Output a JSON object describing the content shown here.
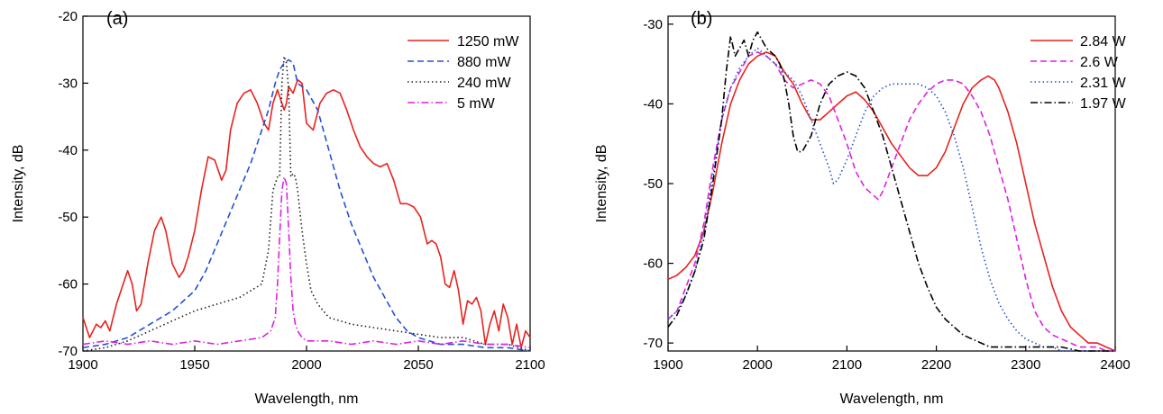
{
  "chart_data": [
    {
      "type": "line",
      "panel_label": "(a)",
      "xlabel": "Wavelength, nm",
      "ylabel": "Intensity, dB",
      "xlim": [
        1900,
        2100
      ],
      "ylim": [
        -70,
        -20
      ],
      "xticks": [
        1900,
        1950,
        2000,
        2050,
        2100
      ],
      "yticks": [
        -70,
        -60,
        -50,
        -40,
        -30,
        -20
      ],
      "legend_position": "top-right",
      "series": [
        {
          "name": "1250 mW",
          "color": "#e8221e",
          "dash": "solid",
          "x": [
            1900,
            1903,
            1906,
            1908,
            1910,
            1912,
            1915,
            1918,
            1920,
            1922,
            1924,
            1926,
            1929,
            1932,
            1935,
            1937,
            1940,
            1943,
            1945,
            1947,
            1950,
            1953,
            1956,
            1959,
            1962,
            1964,
            1966,
            1969,
            1972,
            1975,
            1978,
            1981,
            1983,
            1985,
            1987,
            1988,
            1990,
            1991,
            1992,
            1994,
            1996,
            1998,
            2000,
            2003,
            2006,
            2009,
            2012,
            2015,
            2018,
            2021,
            2024,
            2027,
            2030,
            2033,
            2036,
            2039,
            2042,
            2045,
            2048,
            2051,
            2054,
            2056,
            2058,
            2060,
            2062,
            2064,
            2066,
            2068,
            2070,
            2072,
            2074,
            2076,
            2078,
            2080,
            2082,
            2084,
            2086,
            2088,
            2090,
            2092,
            2094,
            2096,
            2098,
            2100
          ],
          "y": [
            -65,
            -68,
            -66,
            -66.5,
            -65.5,
            -67,
            -63,
            -60,
            -58,
            -60,
            -64,
            -63,
            -57,
            -52,
            -50,
            -52,
            -57,
            -59,
            -58,
            -56,
            -52,
            -46,
            -41,
            -41.5,
            -44.5,
            -43,
            -37,
            -33,
            -31.5,
            -31,
            -33,
            -36,
            -37,
            -33,
            -31,
            -32,
            -34,
            -33,
            -30.5,
            -31.5,
            -29.5,
            -30,
            -36,
            -37,
            -33,
            -31.5,
            -31,
            -31.5,
            -34,
            -37,
            -39.5,
            -41,
            -42,
            -42.5,
            -42,
            -44.5,
            -48,
            -48,
            -48.5,
            -50,
            -54,
            -53.5,
            -54,
            -56,
            -60,
            -60.5,
            -58,
            -61,
            -66,
            -62.5,
            -63,
            -62,
            -64,
            -69,
            -66,
            -64,
            -67,
            -63,
            -65,
            -69,
            -66,
            -69.5,
            -67,
            -68
          ]
        },
        {
          "name": "880 mW",
          "color": "#2450d8",
          "dash": "dashed",
          "x": [
            1900,
            1910,
            1920,
            1930,
            1940,
            1950,
            1955,
            1960,
            1965,
            1970,
            1975,
            1980,
            1983,
            1986,
            1988,
            1990,
            1992,
            1994,
            1996,
            1998,
            2000,
            2005,
            2010,
            2015,
            2020,
            2025,
            2030,
            2035,
            2040,
            2045,
            2050,
            2060,
            2070,
            2080,
            2090,
            2100
          ],
          "y": [
            -69.5,
            -69,
            -68,
            -66,
            -64,
            -61,
            -58,
            -54,
            -50,
            -46,
            -42,
            -37,
            -34,
            -30,
            -28,
            -27,
            -26.5,
            -27,
            -30,
            -30.5,
            -31,
            -34,
            -40,
            -46,
            -51,
            -55,
            -59,
            -62,
            -65,
            -67,
            -68,
            -69,
            -69,
            -69.5,
            -69.5,
            -70
          ]
        },
        {
          "name": "240 mW",
          "color": "#222222",
          "dash": "dotted",
          "x": [
            1900,
            1910,
            1920,
            1930,
            1940,
            1950,
            1960,
            1970,
            1980,
            1983,
            1985,
            1987,
            1988,
            1989,
            1990,
            1991,
            1992,
            1993,
            1994,
            1995,
            1996,
            1998,
            2000,
            2002,
            2005,
            2010,
            2015,
            2020,
            2030,
            2040,
            2050,
            2060,
            2070,
            2080,
            2090,
            2100
          ],
          "y": [
            -70,
            -69.5,
            -68.5,
            -67,
            -65.5,
            -64,
            -63,
            -62,
            -60,
            -55,
            -46,
            -44,
            -44,
            -30,
            -26,
            -27,
            -31,
            -44,
            -43.5,
            -44,
            -46,
            -52,
            -57,
            -61,
            -63,
            -65,
            -65.5,
            -66,
            -66.5,
            -67,
            -67.5,
            -68,
            -68,
            -69,
            -69,
            -70
          ]
        },
        {
          "name": "5 mW",
          "color": "#e01fe0",
          "dash": "dashdot",
          "x": [
            1900,
            1910,
            1920,
            1930,
            1940,
            1950,
            1960,
            1970,
            1980,
            1984,
            1986,
            1987,
            1988,
            1989,
            1990,
            1991,
            1992,
            1993,
            1994,
            1995,
            1996,
            1998,
            2000,
            2010,
            2020,
            2030,
            2040,
            2050,
            2060,
            2070,
            2080,
            2090,
            2100
          ],
          "y": [
            -69,
            -68.5,
            -69,
            -68.5,
            -69,
            -68.5,
            -69,
            -68.5,
            -68,
            -67,
            -65,
            -60,
            -53,
            -46,
            -44,
            -45,
            -52,
            -59,
            -64,
            -66,
            -67,
            -68,
            -68.5,
            -68.5,
            -69,
            -68.5,
            -69,
            -68.5,
            -69,
            -68.5,
            -69,
            -69,
            -69.5
          ]
        }
      ]
    },
    {
      "type": "line",
      "panel_label": "(b)",
      "xlabel": "Wavelength, nm",
      "ylabel": "Intensity, dB",
      "xlim": [
        1900,
        2400
      ],
      "ylim": [
        -71,
        -29
      ],
      "xticks": [
        1900,
        2000,
        2100,
        2200,
        2300,
        2400
      ],
      "yticks": [
        -70,
        -60,
        -50,
        -40,
        -30
      ],
      "legend_position": "top-right",
      "series": [
        {
          "name": "2.84 W",
          "color": "#e8221e",
          "dash": "solid",
          "x": [
            1900,
            1910,
            1920,
            1930,
            1940,
            1950,
            1960,
            1970,
            1980,
            1990,
            2000,
            2010,
            2020,
            2030,
            2040,
            2050,
            2060,
            2070,
            2080,
            2090,
            2100,
            2110,
            2120,
            2130,
            2140,
            2150,
            2160,
            2170,
            2180,
            2190,
            2200,
            2210,
            2220,
            2230,
            2240,
            2250,
            2258,
            2265,
            2270,
            2280,
            2290,
            2300,
            2310,
            2320,
            2330,
            2340,
            2350,
            2360,
            2370,
            2380,
            2390,
            2400
          ],
          "y": [
            -62,
            -61.5,
            -60.5,
            -59,
            -56,
            -51,
            -45,
            -40,
            -37,
            -35,
            -34,
            -33.5,
            -34,
            -36,
            -37.5,
            -40,
            -42,
            -42,
            -41,
            -40,
            -39,
            -38.5,
            -39.5,
            -41,
            -43,
            -45,
            -46.5,
            -48,
            -49,
            -49,
            -48,
            -46,
            -43,
            -40,
            -38,
            -37,
            -36.5,
            -37,
            -38,
            -41,
            -45,
            -50,
            -55,
            -59,
            -63,
            -66,
            -68,
            -69,
            -70,
            -70,
            -70.5,
            -71
          ]
        },
        {
          "name": "2.6 W",
          "color": "#e01fe0",
          "dash": "dashed",
          "x": [
            1900,
            1910,
            1920,
            1930,
            1940,
            1950,
            1960,
            1970,
            1980,
            1990,
            2000,
            2010,
            2020,
            2030,
            2040,
            2050,
            2060,
            2070,
            2080,
            2090,
            2100,
            2110,
            2120,
            2130,
            2135,
            2140,
            2150,
            2160,
            2170,
            2180,
            2190,
            2200,
            2210,
            2220,
            2230,
            2240,
            2250,
            2260,
            2270,
            2280,
            2290,
            2300,
            2310,
            2320,
            2330,
            2340,
            2350,
            2360,
            2370,
            2380,
            2390,
            2400
          ],
          "y": [
            -67,
            -66,
            -63,
            -60,
            -55,
            -48,
            -42,
            -38,
            -36,
            -34,
            -33.5,
            -34,
            -35,
            -37,
            -38,
            -37.5,
            -37,
            -37.5,
            -39,
            -42,
            -45,
            -48.5,
            -50.5,
            -51.5,
            -52,
            -51,
            -48,
            -45,
            -42,
            -40,
            -38.5,
            -37.5,
            -37,
            -37,
            -37.5,
            -39,
            -41,
            -44,
            -48,
            -52,
            -57,
            -62,
            -66,
            -68,
            -69,
            -69.5,
            -70,
            -70.5,
            -70.5,
            -70.5,
            -71,
            -71
          ]
        },
        {
          "name": "2.31 W",
          "color": "#2450d8",
          "dash": "dotted",
          "x": [
            1900,
            1910,
            1920,
            1930,
            1940,
            1950,
            1960,
            1970,
            1980,
            1990,
            2000,
            2010,
            2020,
            2030,
            2040,
            2050,
            2060,
            2070,
            2080,
            2085,
            2090,
            2100,
            2110,
            2120,
            2130,
            2140,
            2150,
            2160,
            2170,
            2180,
            2190,
            2200,
            2210,
            2220,
            2230,
            2240,
            2250,
            2260,
            2270,
            2280,
            2290,
            2300,
            2310,
            2320,
            2330,
            2340,
            2350,
            2360,
            2370,
            2380,
            2390,
            2400
          ],
          "y": [
            -67,
            -66,
            -64,
            -61,
            -56,
            -49,
            -42,
            -38,
            -35.5,
            -34,
            -33,
            -34,
            -35,
            -36,
            -37,
            -39,
            -42,
            -45,
            -48,
            -50,
            -49.5,
            -47,
            -44,
            -41,
            -39,
            -38,
            -37.5,
            -37.5,
            -37.5,
            -37.5,
            -38,
            -39,
            -41,
            -44,
            -48,
            -53,
            -58,
            -62,
            -65,
            -67,
            -68.5,
            -69.5,
            -70,
            -70.5,
            -70.5,
            -71,
            -71,
            -71,
            -71,
            -71,
            -71,
            -71
          ]
        },
        {
          "name": "1.97 W",
          "color": "#000000",
          "dash": "dashdot",
          "x": [
            1900,
            1910,
            1920,
            1930,
            1940,
            1950,
            1960,
            1965,
            1970,
            1975,
            1980,
            1985,
            1990,
            1995,
            2000,
            2005,
            2010,
            2015,
            2020,
            2025,
            2030,
            2035,
            2040,
            2045,
            2050,
            2055,
            2060,
            2070,
            2080,
            2090,
            2100,
            2110,
            2120,
            2130,
            2140,
            2150,
            2160,
            2170,
            2180,
            2190,
            2200,
            2210,
            2220,
            2230,
            2240,
            2250,
            2260,
            2270,
            2280,
            2290,
            2300,
            2320,
            2340,
            2360,
            2380,
            2400
          ],
          "y": [
            -68,
            -66.5,
            -64,
            -61,
            -57,
            -50,
            -42,
            -36,
            -31.5,
            -34,
            -33,
            -32,
            -34,
            -32,
            -31,
            -32,
            -33,
            -33.5,
            -34,
            -35,
            -37,
            -40,
            -44,
            -46,
            -46,
            -45,
            -44,
            -40,
            -37.5,
            -36.5,
            -36,
            -36.5,
            -38,
            -41,
            -44,
            -48,
            -52,
            -56,
            -60,
            -63,
            -65.5,
            -67,
            -68,
            -69,
            -69.5,
            -70,
            -70.5,
            -70.5,
            -70.5,
            -70.5,
            -70.5,
            -70.5,
            -70.5,
            -71,
            -71,
            -71
          ]
        }
      ]
    }
  ]
}
